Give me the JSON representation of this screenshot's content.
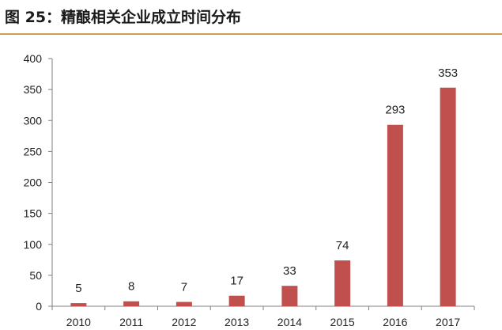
{
  "title": "图 25：精酿相关企业成立时间分布",
  "colors": {
    "bar": "#c0504d",
    "axis": "#7f7f7f",
    "title_rule": "#c9a24b"
  },
  "chart_data": {
    "type": "bar",
    "categories": [
      "2010",
      "2011",
      "2012",
      "2013",
      "2014",
      "2015",
      "2016",
      "2017"
    ],
    "values": [
      5,
      8,
      7,
      17,
      33,
      74,
      293,
      353
    ],
    "data_labels": [
      "5",
      "8",
      "7",
      "17",
      "33",
      "74",
      "293",
      "353"
    ],
    "yticks": [
      0,
      50,
      100,
      150,
      200,
      250,
      300,
      350,
      400
    ],
    "ylim": [
      0,
      400
    ],
    "xlabel": "",
    "ylabel": "",
    "grid": false,
    "legend": "none"
  }
}
